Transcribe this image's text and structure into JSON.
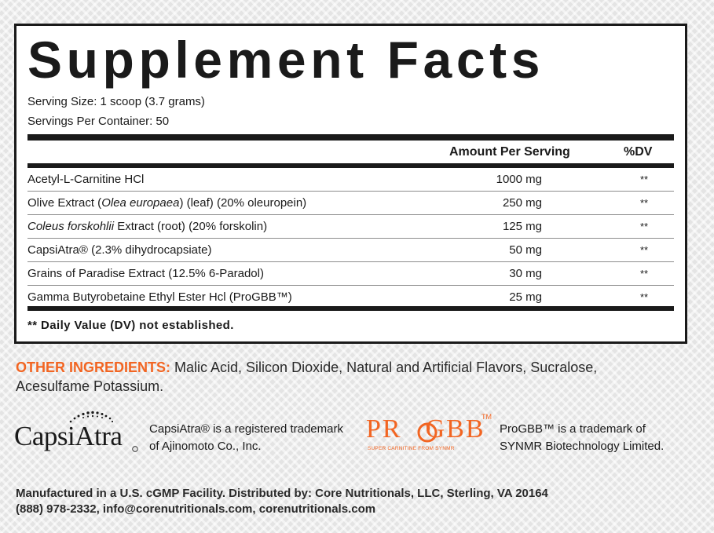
{
  "label": {
    "title": "Supplement Facts",
    "serving_size": "Serving Size: 1 scoop (3.7 grams)",
    "servings_per_container": "Servings Per Container: 50",
    "column_amount": "Amount Per Serving",
    "column_dv": "%DV",
    "rows": [
      {
        "name": "Acetyl-L-Carnitine HCl",
        "name_italic": "",
        "name_after": "",
        "amount": "1000 mg",
        "dv": "**"
      },
      {
        "name": "Olive Extract (",
        "name_italic": "Olea europaea",
        "name_after": ") (leaf) (20% oleuropein)",
        "amount": "250 mg",
        "dv": "**"
      },
      {
        "name": "",
        "name_italic": "Coleus forskohlii",
        "name_after": " Extract (root) (20% forskolin)",
        "amount": "125 mg",
        "dv": "**"
      },
      {
        "name": "CapsiAtra® (2.3% dihydrocapsiate)",
        "name_italic": "",
        "name_after": "",
        "amount": "50 mg",
        "dv": "**"
      },
      {
        "name": "Grains of Paradise Extract (12.5% 6-Paradol)",
        "name_italic": "",
        "name_after": "",
        "amount": "30 mg",
        "dv": "**"
      },
      {
        "name": "Gamma Butyrobetaine Ethyl Ester Hcl (ProGBB™)",
        "name_italic": "",
        "name_after": "",
        "amount": "25 mg",
        "dv": "**"
      }
    ],
    "footnote": "** Daily Value (DV) not established."
  },
  "other_ingredients": {
    "label": "OTHER INGREDIENTS:",
    "text": " Malic Acid, Silicon Dioxide, Natural and Artificial Flavors, Sucralose, Acesulfame Potassium."
  },
  "trademarks": {
    "capsiatra_logo": "CapsiAtra",
    "capsiatra_note": "CapsiAtra® is a registered trademark of Ajinomoto Co., Inc.",
    "progbb_logo_left": "PR",
    "progbb_logo_right": "GBB",
    "progbb_tm": "TM",
    "progbb_tagline": "SUPER CARNITINE FROM SYNMR",
    "progbb_note": "ProGBB™ is a trademark of SYNMR Biotechnology Limited.",
    "accent_color": "#f26522"
  },
  "manufacturer": {
    "line1": "Manufactured in a U.S. cGMP Facility. Distributed by: Core Nutritionals, LLC, Sterling, VA 20164",
    "line2": "(888) 978-2332, info@corenutritionals.com, corenutritionals.com"
  }
}
